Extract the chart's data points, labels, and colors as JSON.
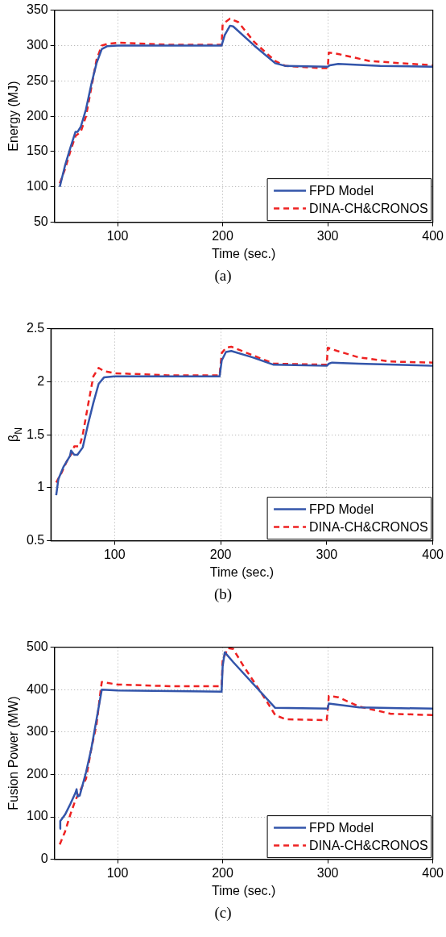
{
  "chart_data": [
    {
      "type": "line",
      "xlabel": "Time (sec.)",
      "ylabel": "Energy (MJ)",
      "xlim": [
        40,
        400
      ],
      "xticks": [
        100,
        200,
        300,
        400
      ],
      "ylim": [
        50,
        350
      ],
      "yticks": [
        50,
        100,
        150,
        200,
        250,
        300,
        350
      ],
      "grid": true,
      "legend": "bottom right",
      "marker": "none",
      "annotations": [
        "(a)"
      ],
      "series": [
        {
          "name": "FPD Model",
          "color": "#3355aa",
          "line_style": "solid",
          "x": [
            45,
            50,
            55,
            60,
            62,
            65,
            70,
            75,
            80,
            85,
            90,
            100,
            150,
            199,
            202,
            207,
            210,
            230,
            250,
            260,
            300,
            302,
            310,
            350,
            400
          ],
          "values": [
            100,
            130,
            155,
            178,
            178,
            185,
            210,
            245,
            275,
            295,
            299,
            300,
            300,
            300,
            315,
            328,
            327,
            300,
            275,
            271,
            270,
            272,
            274,
            271,
            270
          ]
        },
        {
          "name": "DINA-CH&CRONOS",
          "color": "#ee2222",
          "line_style": "dashed",
          "x": [
            45,
            50,
            55,
            60,
            65,
            70,
            75,
            80,
            85,
            90,
            100,
            150,
            199,
            200,
            207,
            215,
            230,
            250,
            260,
            295,
            300,
            301,
            310,
            340,
            400
          ],
          "values": [
            105,
            125,
            150,
            172,
            178,
            200,
            240,
            280,
            300,
            302,
            304,
            301,
            301,
            330,
            338,
            333,
            305,
            278,
            271,
            268,
            268,
            290,
            288,
            278,
            272
          ]
        }
      ]
    },
    {
      "type": "line",
      "xlabel": "Time (sec.)",
      "ylabel": "β$_{N}$",
      "xlim": [
        40,
        400
      ],
      "xticks": [
        100,
        200,
        300,
        400
      ],
      "ylim": [
        0.5,
        2.5
      ],
      "yticks": [
        0.5,
        1,
        1.5,
        2,
        2.5
      ],
      "grid": true,
      "legend": "bottom right",
      "marker": "none",
      "annotations": [
        "(b)"
      ],
      "series": [
        {
          "name": "FPD Model",
          "color": "#3355aa",
          "line_style": "solid",
          "x": [
            45,
            47,
            52,
            58,
            59,
            62,
            65,
            70,
            75,
            80,
            85,
            90,
            100,
            199,
            201,
            205,
            210,
            230,
            250,
            300,
            302,
            305,
            330,
            400
          ],
          "values": [
            0.93,
            1.08,
            1.2,
            1.3,
            1.35,
            1.31,
            1.31,
            1.38,
            1.6,
            1.8,
            1.98,
            2.04,
            2.05,
            2.05,
            2.2,
            2.28,
            2.29,
            2.23,
            2.16,
            2.15,
            2.17,
            2.18,
            2.17,
            2.15
          ]
        },
        {
          "name": "DINA-CH&CRONOS",
          "color": "#ee2222",
          "line_style": "dashed",
          "x": [
            45,
            50,
            55,
            60,
            62,
            67,
            70,
            75,
            80,
            85,
            90,
            100,
            150,
            199,
            201,
            205,
            210,
            230,
            250,
            300,
            301,
            310,
            330,
            360,
            400
          ],
          "values": [
            1.05,
            1.14,
            1.25,
            1.33,
            1.39,
            1.39,
            1.5,
            1.78,
            2.05,
            2.13,
            2.1,
            2.08,
            2.06,
            2.06,
            2.27,
            2.32,
            2.33,
            2.25,
            2.17,
            2.16,
            2.32,
            2.29,
            2.23,
            2.19,
            2.18
          ]
        }
      ]
    },
    {
      "type": "line",
      "xlabel": "Time (sec.)",
      "ylabel": "Fusion Power (MW)",
      "xlim": [
        40,
        400
      ],
      "xticks": [
        100,
        200,
        300,
        400
      ],
      "ylim": [
        0,
        500
      ],
      "yticks": [
        0,
        100,
        200,
        300,
        400,
        500
      ],
      "grid": true,
      "legend": "bottom right",
      "marker": "none",
      "annotations": [
        "(c)"
      ],
      "series": [
        {
          "name": "FPD Model",
          "color": "#3355aa",
          "line_style": "solid",
          "x": [
            45,
            45.5,
            50,
            55,
            60,
            61,
            62,
            64,
            70,
            75,
            80,
            85,
            100,
            199,
            200,
            202,
            210,
            250,
            300,
            301,
            330,
            400
          ],
          "values": [
            72,
            90,
            105,
            130,
            157,
            165,
            148,
            150,
            205,
            260,
            330,
            400,
            398,
            395,
            455,
            488,
            465,
            357,
            355,
            367,
            358,
            355
          ]
        },
        {
          "name": "DINA-CH&CRONOS",
          "color": "#ee2222",
          "line_style": "dashed",
          "x": [
            45,
            50,
            55,
            60,
            65,
            70,
            75,
            80,
            84,
            85,
            100,
            150,
            199,
            200,
            205,
            210,
            220,
            240,
            250,
            260,
            299,
            300,
            301,
            310,
            330,
            360,
            400
          ],
          "values": [
            35,
            65,
            105,
            140,
            165,
            190,
            260,
            318,
            400,
            418,
            412,
            408,
            408,
            470,
            498,
            496,
            455,
            380,
            340,
            330,
            328,
            350,
            385,
            382,
            360,
            343,
            340
          ]
        }
      ]
    }
  ]
}
